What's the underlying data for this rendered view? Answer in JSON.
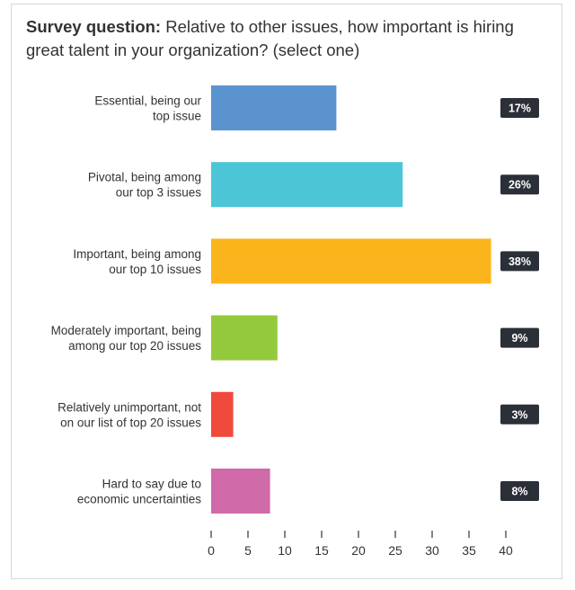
{
  "title": {
    "prefix": "Survey question:",
    "text": "Relative to other issues, how important is hiring great talent in your organization? (select one)"
  },
  "chart_data": {
    "type": "bar",
    "orientation": "horizontal",
    "categories": [
      [
        "Essential, being our",
        "top issue"
      ],
      [
        "Pivotal, being among",
        "our top 3 issues"
      ],
      [
        "Important, being among",
        "our top 10 issues"
      ],
      [
        "Moderately important, being",
        "among our top 20 issues"
      ],
      [
        "Relatively unimportant, not",
        "on our list of top 20 issues"
      ],
      [
        "Hard to say due to",
        "economic uncertainties"
      ]
    ],
    "values": [
      17,
      26,
      38,
      9,
      3,
      8
    ],
    "value_labels": [
      "17%",
      "26%",
      "38%",
      "9%",
      "3%",
      "8%"
    ],
    "colors": [
      "#5b93cf",
      "#4cc5d7",
      "#fbb51c",
      "#95c93d",
      "#ef4a3c",
      "#d06aa9"
    ],
    "xlim": [
      0,
      40
    ],
    "xticks": [
      0,
      5,
      10,
      15,
      20,
      25,
      30,
      35,
      40
    ],
    "grid": false,
    "legend": "none",
    "badge_color": "#2b2f38"
  }
}
